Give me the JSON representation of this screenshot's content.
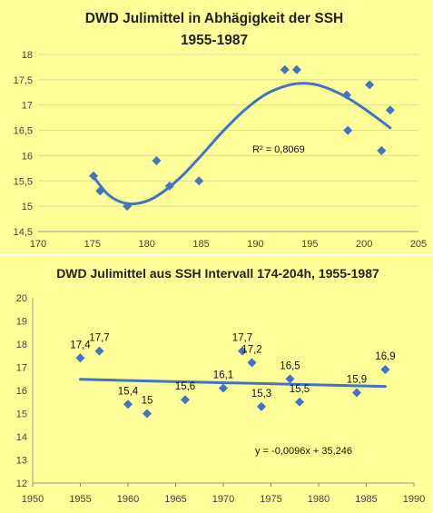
{
  "chart_data": [
    {
      "type": "scatter",
      "title": "DWD Julimittel in Abhägigkeit der SSH",
      "subtitle": "1955-1987",
      "xlim": [
        170,
        205
      ],
      "ylim": [
        14.5,
        18
      ],
      "x_ticks": [
        "170",
        "175",
        "180",
        "185",
        "190",
        "195",
        "200",
        "205"
      ],
      "y_ticks": [
        "14,5",
        "15",
        "15,5",
        "16",
        "16,5",
        "17",
        "17,5",
        "18"
      ],
      "grid": "horizontal",
      "series": [
        {
          "points": [
            {
              "x": 175.1,
              "y": 15.6
            },
            {
              "x": 175.7,
              "y": 15.3
            },
            {
              "x": 178.2,
              "y": 15.0
            },
            {
              "x": 180.9,
              "y": 15.9
            },
            {
              "x": 182.1,
              "y": 15.4
            },
            {
              "x": 184.8,
              "y": 15.5
            },
            {
              "x": 192.7,
              "y": 17.7
            },
            {
              "x": 193.8,
              "y": 17.7
            },
            {
              "x": 198.4,
              "y": 17.2
            },
            {
              "x": 198.5,
              "y": 16.5
            },
            {
              "x": 200.5,
              "y": 17.4
            },
            {
              "x": 201.6,
              "y": 16.1
            },
            {
              "x": 202.4,
              "y": 16.9
            }
          ]
        }
      ],
      "trendline": {
        "kind": "polynomial-3",
        "x_range": [
          175.1,
          202.4
        ],
        "curve": [
          {
            "x": 175.1,
            "y": 15.58
          },
          {
            "x": 176.5,
            "y": 15.22
          },
          {
            "x": 178.0,
            "y": 15.06
          },
          {
            "x": 179.5,
            "y": 15.07
          },
          {
            "x": 181.0,
            "y": 15.21
          },
          {
            "x": 183.0,
            "y": 15.55
          },
          {
            "x": 185.0,
            "y": 16.0
          },
          {
            "x": 187.0,
            "y": 16.48
          },
          {
            "x": 189.0,
            "y": 16.9
          },
          {
            "x": 191.0,
            "y": 17.22
          },
          {
            "x": 193.0,
            "y": 17.39
          },
          {
            "x": 194.5,
            "y": 17.43
          },
          {
            "x": 196.0,
            "y": 17.38
          },
          {
            "x": 198.0,
            "y": 17.2
          },
          {
            "x": 200.0,
            "y": 16.93
          },
          {
            "x": 202.4,
            "y": 16.55
          }
        ]
      },
      "annotation": "R² = 0,8069"
    },
    {
      "type": "scatter",
      "title": "DWD Julimittel aus SSH Intervall 174-204h, 1955-1987",
      "xlim": [
        1950,
        1990
      ],
      "ylim": [
        12,
        20
      ],
      "x_ticks": [
        "1950",
        "1955",
        "1960",
        "1965",
        "1970",
        "1975",
        "1980",
        "1985",
        "1990"
      ],
      "y_ticks": [
        "12",
        "13",
        "14",
        "15",
        "16",
        "17",
        "18",
        "19",
        "20"
      ],
      "grid": "none",
      "series": [
        {
          "points": [
            {
              "x": 1955,
              "y": 17.4,
              "label": "17,4"
            },
            {
              "x": 1957,
              "y": 17.7,
              "label": "17,7"
            },
            {
              "x": 1960,
              "y": 15.4,
              "label": "15,4"
            },
            {
              "x": 1962,
              "y": 15.0,
              "label": "15"
            },
            {
              "x": 1966,
              "y": 15.6,
              "label": "15,6"
            },
            {
              "x": 1970,
              "y": 16.1,
              "label": "16,1"
            },
            {
              "x": 1972,
              "y": 17.7,
              "label": "17,7"
            },
            {
              "x": 1973,
              "y": 17.2,
              "label": "17,2"
            },
            {
              "x": 1974,
              "y": 15.3,
              "label": "15,3"
            },
            {
              "x": 1977,
              "y": 16.5,
              "label": "16,5"
            },
            {
              "x": 1978,
              "y": 15.5,
              "label": "15,5"
            },
            {
              "x": 1984,
              "y": 15.9,
              "label": "15,9"
            },
            {
              "x": 1987,
              "y": 16.9,
              "label": "16,9"
            }
          ]
        }
      ],
      "trendline": {
        "kind": "linear",
        "slope": -0.0096,
        "intercept": 35.246,
        "x_range": [
          1955,
          1987
        ]
      },
      "annotation": "y = -0,0096x + 35,246"
    }
  ],
  "colors": {
    "panel_background": "#ffff99",
    "marker": "#4472c4",
    "trendline": "#4472c4",
    "gridline": "#d9d9a6"
  }
}
